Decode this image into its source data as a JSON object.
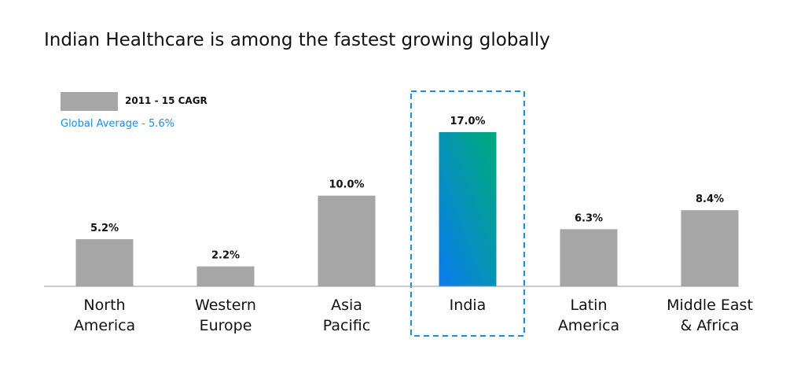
{
  "chart_data": {
    "type": "bar",
    "title": "Indian Healthcare is among the fastest growing globally",
    "legend": {
      "series_name": "2011 - 15 CAGR",
      "note": "Global Average - 5.6%"
    },
    "categories": [
      [
        "North",
        "America"
      ],
      [
        "Western",
        "Europe"
      ],
      [
        "Asia",
        "Pacific"
      ],
      [
        "India"
      ],
      [
        "Latin",
        "America"
      ],
      [
        "Middle East",
        "& Africa"
      ]
    ],
    "values": [
      5.2,
      2.2,
      10.0,
      17.0,
      6.3,
      8.4
    ],
    "value_labels": [
      "5.2%",
      "2.2%",
      "10.0%",
      "17.0%",
      "6.3%",
      "8.4%"
    ],
    "highlight_index": 3,
    "ylim": [
      0,
      17.0
    ],
    "grid": false,
    "legend_position": "top-left",
    "colors": {
      "bar": "#a6a6a6",
      "highlight_gradient_top": "#00ab7a",
      "highlight_gradient_bottom": "#0a7cf0",
      "highlight_border": "#1a8fe0",
      "axis": "#999999",
      "text": "#111111",
      "note": "#1a8fe0"
    }
  }
}
